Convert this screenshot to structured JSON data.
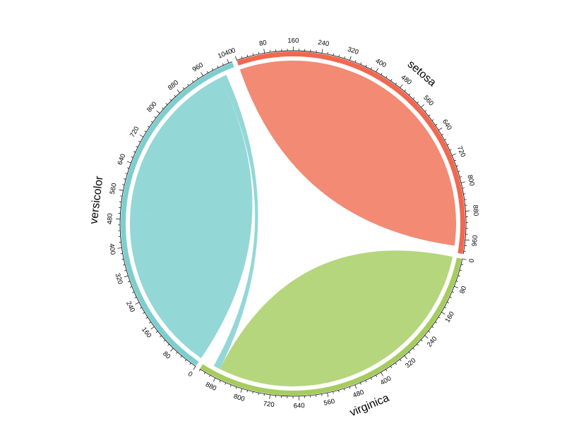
{
  "chart_data": {
    "type": "chord",
    "title": "",
    "sectors": [
      {
        "name": "setosa",
        "total": 1000,
        "color": "#F0684F",
        "chord_color": "#F28A74",
        "major_ticks": [
          0,
          80,
          160,
          240,
          320,
          400,
          480,
          560,
          640,
          720,
          800,
          880,
          960
        ]
      },
      {
        "name": "versicolor",
        "total": 1050,
        "color": "#7ECECE",
        "chord_color": "#94D7D7",
        "major_ticks": [
          0,
          80,
          160,
          240,
          320,
          400,
          480,
          560,
          640,
          720,
          800,
          880,
          960,
          1040
        ]
      },
      {
        "name": "virginica",
        "total": 930,
        "color": "#A5CC5C",
        "chord_color": "#B5D67C",
        "major_ticks": [
          0,
          80,
          160,
          240,
          320,
          400,
          480,
          560,
          640,
          720,
          800,
          880
        ]
      }
    ],
    "links": [
      {
        "from": "setosa",
        "to": "setosa",
        "value": 980
      },
      {
        "from": "versicolor",
        "to": "versicolor",
        "value": 1000
      },
      {
        "from": "virginica",
        "to": "virginica",
        "value": 880
      },
      {
        "from": "versicolor",
        "to": "virginica",
        "value": 20
      }
    ]
  }
}
